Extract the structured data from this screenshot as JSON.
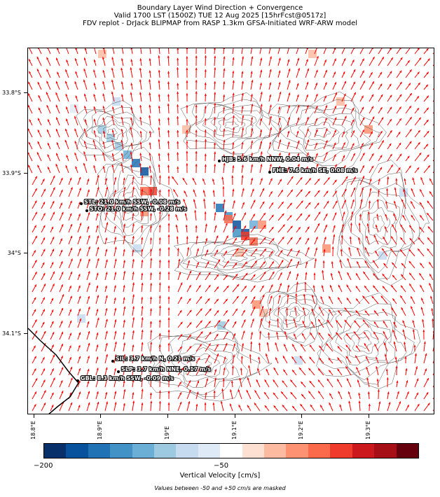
{
  "title": {
    "line1": "Boundary Layer Wind Direction + Convergence",
    "line2": "Valid 1700 LST (1500Z) TUE 12 Aug 2025 [15hrFcst@0517z]",
    "line3": "FDV replot - DrJack BLIPMAP from RASP 1.3km GFSA-Initiated WRF-ARW model"
  },
  "map": {
    "lat_labels": [
      "33.8°S",
      "33.9°S",
      "34°S",
      "34.1°S"
    ],
    "lon_labels": [
      "18.8°E",
      "18.9°E",
      "19°E",
      "19.1°E",
      "19.2°E",
      "19.3°E"
    ],
    "stations": [
      {
        "label": "HJB: 5.6 km/h NNW, 0.04 m/s"
      },
      {
        "label": "FHE: 7.6 km/h SE, 0.08 m/s"
      },
      {
        "label": "STL: 21.0 km/h SSW, -0.08 m/s"
      },
      {
        "label": "STO: 21.0 km/h SSW, -0.28 m/s"
      },
      {
        "label": "SIL: 3.7 km/h N, 0.21 m/s"
      },
      {
        "label": "SLP: 3.7 km/h NNE, 0.17 m/s"
      },
      {
        "label": "GBL: 8.3 km/h SSW, -0.09 m/s"
      }
    ],
    "arrow_color": "#ff0000",
    "contour_color": "#555555"
  },
  "colorbar": {
    "title": "Vertical Velocity [cm/s]",
    "min_label": "−200",
    "mid_label": "−50",
    "colors": [
      "#08306b",
      "#08519c",
      "#2171b5",
      "#4292c6",
      "#6baed6",
      "#9ecae1",
      "#c6dbef",
      "#deebf7",
      "#ffffff",
      "#fee0d2",
      "#fcbba1",
      "#fc9272",
      "#fb6a4a",
      "#ef3b2c",
      "#cb181d",
      "#a50f15",
      "#67000d"
    ]
  },
  "footnote": "Values between -50 and +50 cm/s are masked"
}
